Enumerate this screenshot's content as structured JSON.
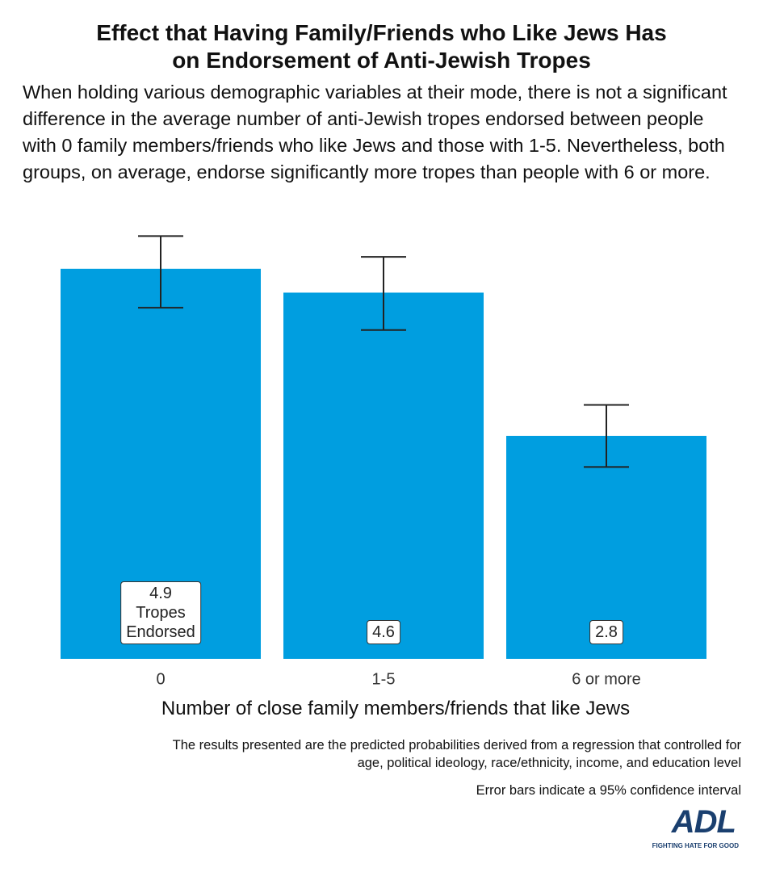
{
  "chart_data": {
    "type": "bar",
    "title": "Effect that Having Family/Friends who Like Jews Has on Endorsement of Anti-Jewish Tropes",
    "subtitle": "When holding various demographic variables at their mode, there is not a significant difference in the average number of anti-Jewish tropes endorsed between people with 0 family members/friends who like Jews and those with 1-5. Nevertheless, both groups, on average, endorse significantly more tropes than people with 6 or more.",
    "categories": [
      "0",
      "1-5",
      "6 or more"
    ],
    "values": [
      4.9,
      4.6,
      2.8
    ],
    "value_labels": [
      "4.9 Tropes Endorsed",
      "4.6",
      "2.8"
    ],
    "ci_low": [
      4.41,
      4.13,
      2.41
    ],
    "ci_high": [
      5.31,
      5.05,
      3.19
    ],
    "color": "#009ee0",
    "x_label": "Number of close family members/friends that like Jews",
    "notes": [
      "The results presented are the predicted probabilities derived from a regression that controlled for age, political ideology, race/ethnicity, income, and education level",
      "Error bars indicate a 95% confidence interval"
    ],
    "logo": "ADL",
    "logo_tagline": "FIGHTING HATE FOR GOOD"
  }
}
